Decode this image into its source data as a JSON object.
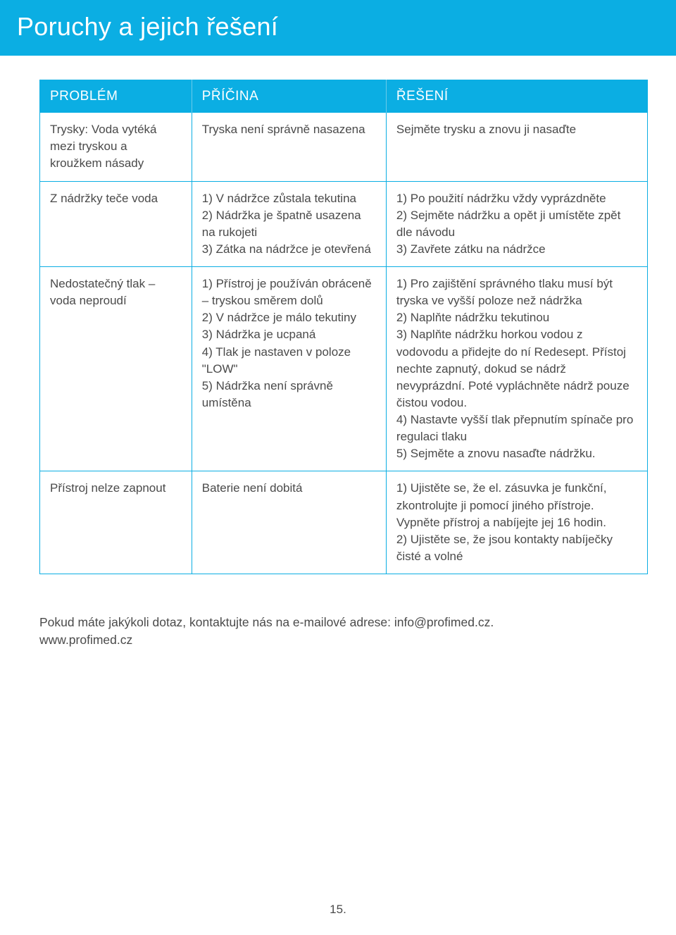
{
  "page": {
    "title": "Poruchy a jejich řešení",
    "page_number": "15."
  },
  "colors": {
    "brand_blue": "#0baee3",
    "brand_blue_light": "#6acbea",
    "text": "#4a4a4a",
    "white": "#ffffff"
  },
  "table": {
    "headers": {
      "problem": "PROBLÉM",
      "cause": "PŘÍČINA",
      "solution": "ŘEŠENÍ"
    },
    "rows": [
      {
        "problem": "Trysky: Voda vytéká mezi tryskou a kroužkem násady",
        "cause": "Tryska není správně nasazena",
        "solution": "Sejměte trysku a znovu ji nasaďte"
      },
      {
        "problem": "Z nádržky teče voda",
        "cause": "1) V nádržce zůstala tekutina\n2) Nádržka je špatně usazena na rukojeti\n3) Zátka na nádržce je otevřená",
        "solution": "1) Po použití nádržku vždy vyprázdněte\n2) Sejměte nádržku a opět ji umístěte zpět dle návodu\n3) Zavřete zátku na nádržce"
      },
      {
        "problem": "Nedostatečný tlak – voda neproudí",
        "cause": "1) Přístroj je používán obráceně – tryskou směrem dolů\n2) V nádržce je málo tekutiny\n3) Nádržka je ucpaná\n4) Tlak je nastaven v poloze \"LOW\"\n5) Nádržka není správně umístěna",
        "solution": "1) Pro zajištění správného tlaku musí být tryska ve vyšší poloze než nádržka\n2) Naplňte nádržku tekutinou\n3) Naplňte nádržku horkou vodou z vodovodu a přidejte do ní Redesept. Přístoj nechte zapnutý, dokud se nádrž nevyprázdní. Poté vypláchněte nádrž pouze čistou vodou.\n4) Nastavte vyšší tlak přepnutím spínače pro regulaci tlaku\n5) Sejměte a znovu nasaďte nádržku."
      },
      {
        "problem": "Přístroj nelze zapnout",
        "cause": "Baterie není dobitá",
        "solution": "1) Ujistěte se, že el. zásuvka je funkční, zkontrolujte ji pomocí jiného přístroje. Vypněte přístroj a nabíjejte jej 16 hodin.\n2) Ujistěte se, že jsou kontakty nabíječky čisté a volné"
      }
    ]
  },
  "footer": {
    "line1": "Pokud máte jakýkoli dotaz, kontaktujte nás na e-mailové adrese: info@profimed.cz.",
    "line2": "www.profimed.cz"
  }
}
